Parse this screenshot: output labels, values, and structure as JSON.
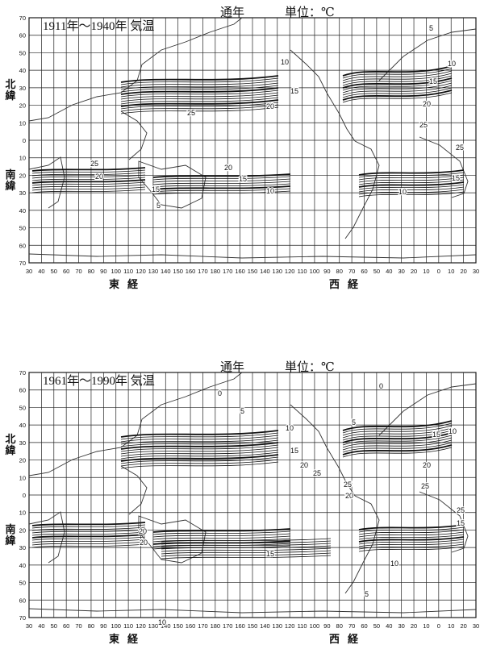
{
  "maps": [
    {
      "id": "1911-1940",
      "title": "1911年～1940年 気温",
      "period_label": "通年",
      "unit_label": "単位：℃",
      "isotherm_labels": [
        "5",
        "10",
        "10",
        "15",
        "15",
        "20",
        "20",
        "25",
        "25",
        "25",
        "25",
        "20",
        "20",
        "15",
        "15",
        "15",
        "10",
        "10",
        "5"
      ]
    },
    {
      "id": "1961-1990",
      "title": "1961年～1990年 気温",
      "period_label": "通年",
      "unit_label": "単位：℃",
      "isotherm_labels": [
        "0",
        "5",
        "0",
        "5",
        "10",
        "10",
        "15",
        "15",
        "20",
        "20",
        "25",
        "25",
        "25",
        "25",
        "20",
        "20",
        "20",
        "15",
        "15",
        "10",
        "10",
        "5"
      ]
    }
  ],
  "axes": {
    "lat_ticks": [
      "70",
      "60",
      "50",
      "40",
      "30",
      "20",
      "10",
      "0",
      "10",
      "20",
      "30",
      "40",
      "50",
      "60",
      "70"
    ],
    "lng_ticks": [
      "30",
      "40",
      "50",
      "60",
      "70",
      "80",
      "90",
      "100",
      "110",
      "120",
      "130",
      "140",
      "150",
      "160",
      "170",
      "180",
      "170",
      "160",
      "150",
      "140",
      "130",
      "120",
      "110",
      "100",
      "90",
      "80",
      "70",
      "60",
      "50",
      "40",
      "30",
      "20",
      "10",
      "0",
      "10",
      "20",
      "30"
    ],
    "north_label": "北緯",
    "south_label": "南緯",
    "east_label": "東経",
    "west_label": "西経"
  }
}
